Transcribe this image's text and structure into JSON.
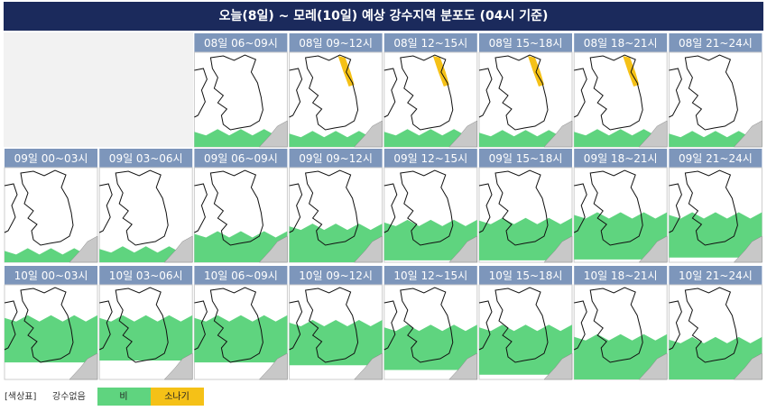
{
  "title": "오늘(8일) ~ 모레(10일) 예상 강수지역 분포도 (04시 기준)",
  "rows": [
    [
      "08일 06~09시",
      "08일 09~12시",
      "08일 12~15시",
      "08일 15~18시",
      "08일 18~21시",
      "08일 21~24시"
    ],
    [
      "09일 00~03시",
      "09일 03~06시",
      "09일 06~09시",
      "09일 09~12시",
      "09일 12~15시",
      "09일 15~18시",
      "09일 18~21시",
      "09일 21~24시"
    ],
    [
      "10일 00~03시",
      "10일 03~06시",
      "10일 06~09시",
      "10일 09~12시",
      "10일 12~15시",
      "10일 15~18시",
      "10일 18~21시",
      "10일 21~24시"
    ]
  ],
  "legend": {
    "label": "[색상표]",
    "none": "강수없음",
    "rain": "비",
    "shower": "소나기"
  }
}
